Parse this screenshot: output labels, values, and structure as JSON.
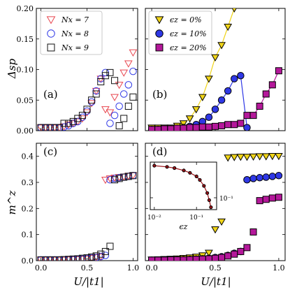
{
  "colors": {
    "red": "#e8464f",
    "blue": "#2f38e6",
    "black": "#111111",
    "yellow": "#f0d418",
    "magenta": "#b4189a",
    "darkred": "#9c1218"
  },
  "axis_labels": {
    "delta_y": "Δsp",
    "m_y": "m^z",
    "x": "U/|t1|",
    "inset_x": "ϵz"
  },
  "panel_labels": [
    "(a)",
    "(b)",
    "(c)",
    "(d)"
  ],
  "chart_data": [
    {
      "panel": "a",
      "type": "scatter",
      "xlim": [
        -0.05,
        1.05
      ],
      "ylim": [
        0,
        0.2
      ],
      "xticks": [
        0.0,
        0.5,
        1.0
      ],
      "yticks": [
        0.0,
        0.05,
        0.1,
        0.15,
        0.2
      ],
      "ytick_labels": [
        "0.00",
        "0.05",
        "0.10",
        "0.15",
        "0.20"
      ],
      "legend": "top-left",
      "series": [
        {
          "name": "Nx = 7",
          "marker": "triangle-down-open",
          "color": "red",
          "x": [
            0.0,
            0.05,
            0.1,
            0.15,
            0.2,
            0.25,
            0.3,
            0.35,
            0.4,
            0.45,
            0.5,
            0.55,
            0.6,
            0.65,
            0.7,
            0.75,
            0.8,
            0.85,
            0.9,
            0.95,
            1.0
          ],
          "y": [
            0.005,
            0.005,
            0.005,
            0.005,
            0.005,
            0.007,
            0.01,
            0.012,
            0.015,
            0.02,
            0.03,
            0.045,
            0.065,
            0.085,
            0.035,
            0.03,
            0.055,
            0.075,
            0.095,
            0.11,
            0.128
          ]
        },
        {
          "name": "Nx = 8",
          "marker": "circle-open",
          "color": "blue",
          "x": [
            0.0,
            0.05,
            0.1,
            0.15,
            0.2,
            0.25,
            0.3,
            0.35,
            0.4,
            0.45,
            0.5,
            0.55,
            0.6,
            0.65,
            0.7,
            0.75,
            0.8,
            0.85,
            0.9,
            0.95,
            1.0
          ],
          "y": [
            0.005,
            0.005,
            0.005,
            0.005,
            0.005,
            0.006,
            0.008,
            0.012,
            0.015,
            0.022,
            0.032,
            0.047,
            0.065,
            0.085,
            0.095,
            0.012,
            0.025,
            0.04,
            0.06,
            0.075,
            0.097
          ]
        },
        {
          "name": "Nx = 9",
          "marker": "square-open",
          "color": "black",
          "x": [
            0.0,
            0.05,
            0.1,
            0.15,
            0.2,
            0.25,
            0.3,
            0.35,
            0.4,
            0.45,
            0.5,
            0.55,
            0.6,
            0.65,
            0.7,
            0.75,
            0.8,
            0.85,
            0.9,
            0.95,
            1.0
          ],
          "y": [
            0.005,
            0.005,
            0.005,
            0.005,
            0.005,
            0.012,
            0.012,
            0.015,
            0.02,
            0.025,
            0.035,
            0.05,
            0.06,
            0.08,
            0.09,
            0.095,
            0.082,
            0.008,
            0.02,
            0.04,
            0.055
          ]
        }
      ]
    },
    {
      "panel": "b",
      "type": "line",
      "xlim": [
        -0.05,
        1.05
      ],
      "ylim": [
        0,
        0.2
      ],
      "xticks": [
        0.0,
        0.5,
        1.0
      ],
      "yticks": [
        0.0,
        0.05,
        0.1,
        0.15,
        0.2
      ],
      "legend": "top-left",
      "series": [
        {
          "name": "ϵz = 0%",
          "marker": "triangle-down-filled",
          "color": "yellow",
          "edge": "black",
          "line": true,
          "x": [
            0.0,
            0.05,
            0.1,
            0.15,
            0.2,
            0.25,
            0.3,
            0.35,
            0.4,
            0.45,
            0.5,
            0.55,
            0.6,
            0.65
          ],
          "y": [
            0.005,
            0.005,
            0.005,
            0.005,
            0.008,
            0.012,
            0.02,
            0.035,
            0.055,
            0.085,
            0.12,
            0.14,
            0.17,
            0.2
          ]
        },
        {
          "name": "ϵz = 10%",
          "marker": "circle-filled",
          "color": "blue",
          "edge": "black",
          "line": true,
          "x": [
            0.0,
            0.05,
            0.1,
            0.15,
            0.2,
            0.25,
            0.3,
            0.35,
            0.4,
            0.45,
            0.5,
            0.55,
            0.6,
            0.65,
            0.7,
            0.75
          ],
          "y": [
            0.002,
            0.002,
            0.002,
            0.003,
            0.004,
            0.005,
            0.007,
            0.01,
            0.015,
            0.022,
            0.035,
            0.05,
            0.065,
            0.085,
            0.09,
            0.005
          ]
        },
        {
          "name": "ϵz = 20%",
          "marker": "square-filled",
          "color": "magenta",
          "edge": "black",
          "line": true,
          "x": [
            0.0,
            0.05,
            0.1,
            0.15,
            0.2,
            0.25,
            0.3,
            0.35,
            0.4,
            0.45,
            0.5,
            0.55,
            0.6,
            0.65,
            0.7,
            0.75,
            0.8,
            0.85,
            0.9,
            0.95,
            1.0
          ],
          "y": [
            0.002,
            0.002,
            0.003,
            0.003,
            0.004,
            0.004,
            0.005,
            0.005,
            0.006,
            0.006,
            0.007,
            0.008,
            0.01,
            0.01,
            0.012,
            0.025,
            0.025,
            0.04,
            0.06,
            0.075,
            0.098
          ]
        }
      ]
    },
    {
      "panel": "c",
      "type": "scatter",
      "xlim": [
        -0.05,
        1.05
      ],
      "ylim": [
        0,
        0.45
      ],
      "xticks": [
        0.0,
        0.5,
        1.0
      ],
      "yticks": [
        0.0,
        0.1,
        0.2,
        0.3,
        0.4
      ],
      "xtick_labels": [
        "0.0",
        "0.5",
        "1.0"
      ],
      "ytick_labels": [
        "0.0",
        "0.1",
        "0.2",
        "0.3",
        "0.4"
      ],
      "series": [
        {
          "name": "Nx = 7",
          "marker": "triangle-down-open",
          "color": "red",
          "x": [
            0.0,
            0.05,
            0.1,
            0.15,
            0.2,
            0.25,
            0.3,
            0.35,
            0.4,
            0.45,
            0.5,
            0.55,
            0.6,
            0.65,
            0.7,
            0.75,
            0.8,
            0.85,
            0.9,
            0.95,
            1.0
          ],
          "y": [
            0.003,
            0.003,
            0.003,
            0.003,
            0.003,
            0.003,
            0.004,
            0.005,
            0.005,
            0.006,
            0.007,
            0.01,
            0.013,
            0.016,
            0.31,
            0.315,
            0.318,
            0.32,
            0.322,
            0.325,
            0.327
          ]
        },
        {
          "name": "Nx = 8",
          "marker": "circle-open",
          "color": "blue",
          "x": [
            0.0,
            0.05,
            0.1,
            0.15,
            0.2,
            0.25,
            0.3,
            0.35,
            0.4,
            0.45,
            0.5,
            0.55,
            0.6,
            0.65,
            0.7,
            0.75,
            0.8,
            0.85,
            0.9,
            0.95,
            1.0
          ],
          "y": [
            0.003,
            0.003,
            0.003,
            0.003,
            0.003,
            0.003,
            0.004,
            0.004,
            0.005,
            0.006,
            0.008,
            0.01,
            0.012,
            0.016,
            0.02,
            0.31,
            0.315,
            0.318,
            0.32,
            0.323,
            0.326
          ]
        },
        {
          "name": "Nx = 9",
          "marker": "square-open",
          "color": "black",
          "x": [
            0.0,
            0.05,
            0.1,
            0.15,
            0.2,
            0.25,
            0.3,
            0.35,
            0.4,
            0.45,
            0.5,
            0.55,
            0.6,
            0.65,
            0.7,
            0.75,
            0.8,
            0.85,
            0.9,
            0.95,
            1.0
          ],
          "y": [
            0.003,
            0.003,
            0.003,
            0.003,
            0.003,
            0.004,
            0.005,
            0.006,
            0.007,
            0.009,
            0.011,
            0.014,
            0.018,
            0.025,
            0.035,
            0.055,
            0.31,
            0.315,
            0.32,
            0.323,
            0.326
          ]
        }
      ]
    },
    {
      "panel": "d",
      "type": "scatter",
      "xlim": [
        -0.05,
        1.05
      ],
      "ylim": [
        0,
        0.45
      ],
      "xticks": [
        0.0,
        0.5,
        1.0
      ],
      "yticks": [
        0.0,
        0.1,
        0.2,
        0.3,
        0.4
      ],
      "xtick_labels": [
        "0.0",
        "0.5",
        "1.0"
      ],
      "series": [
        {
          "name": "ϵz = 0%",
          "marker": "triangle-down-filled",
          "color": "yellow",
          "edge": "black",
          "x": [
            0.0,
            0.05,
            0.1,
            0.15,
            0.2,
            0.25,
            0.3,
            0.35,
            0.4,
            0.45,
            0.5,
            0.55,
            0.6,
            0.65,
            0.7,
            0.75,
            0.8,
            0.85,
            0.9,
            0.95,
            1.0
          ],
          "y": [
            0.004,
            0.005,
            0.006,
            0.007,
            0.008,
            0.01,
            0.012,
            0.015,
            0.02,
            0.03,
            0.12,
            0.15,
            0.395,
            0.397,
            0.398,
            0.398,
            0.399,
            0.4,
            0.4,
            0.401,
            0.401
          ]
        },
        {
          "name": "ϵz = 10%",
          "marker": "circle-filled",
          "color": "blue",
          "edge": "black",
          "x": [
            0.0,
            0.05,
            0.1,
            0.15,
            0.2,
            0.25,
            0.3,
            0.35,
            0.4,
            0.45,
            0.5,
            0.55,
            0.6,
            0.65,
            0.7,
            0.75,
            0.8,
            0.85,
            0.9,
            0.95,
            1.0
          ],
          "y": [
            0.002,
            0.002,
            0.002,
            0.003,
            0.003,
            0.004,
            0.005,
            0.006,
            0.007,
            0.009,
            0.012,
            0.015,
            0.02,
            0.028,
            0.035,
            0.31,
            0.315,
            0.318,
            0.32,
            0.323,
            0.326
          ]
        },
        {
          "name": "ϵz = 20%",
          "marker": "square-filled",
          "color": "magenta",
          "edge": "black",
          "x": [
            0.0,
            0.05,
            0.1,
            0.15,
            0.2,
            0.25,
            0.3,
            0.35,
            0.4,
            0.45,
            0.5,
            0.55,
            0.6,
            0.65,
            0.7,
            0.75,
            0.8,
            0.85,
            0.9,
            0.95,
            1.0
          ],
          "y": [
            0.002,
            0.002,
            0.002,
            0.003,
            0.003,
            0.003,
            0.004,
            0.005,
            0.006,
            0.007,
            0.009,
            0.012,
            0.018,
            0.025,
            0.035,
            0.05,
            0.11,
            0.23,
            0.235,
            0.24,
            0.243
          ]
        }
      ]
    },
    {
      "panel": "d-inset",
      "type": "line",
      "xscale": "log",
      "xlim": [
        0.008,
        0.3
      ],
      "xticks": [
        0.01,
        0.1
      ],
      "xtick_labels": [
        "10⁻²",
        "10⁻¹"
      ],
      "ylim": [
        0.0,
        0.4
      ],
      "yticks": [
        0.1
      ],
      "ytick_labels": [
        "10⁻¹"
      ],
      "series": [
        {
          "marker": "circle-filled",
          "color": "darkred",
          "line": true,
          "x": [
            0.01,
            0.02,
            0.03,
            0.05,
            0.07,
            0.1,
            0.12,
            0.15,
            0.18,
            0.2,
            0.22
          ],
          "y": [
            0.37,
            0.36,
            0.35,
            0.33,
            0.31,
            0.28,
            0.25,
            0.2,
            0.14,
            0.08,
            0.02
          ]
        }
      ]
    }
  ]
}
